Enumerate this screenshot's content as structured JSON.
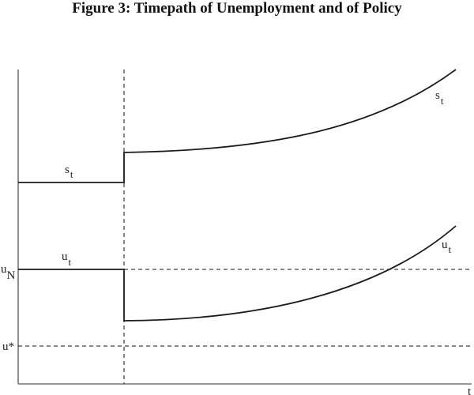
{
  "title": "Figure 3: Timepath of Unemployment and of Policy",
  "labels": {
    "s_left": {
      "main": "s",
      "sub": "t"
    },
    "u_left": {
      "main": "u",
      "sub": "t"
    },
    "s_right": {
      "main": "s",
      "sub": "t"
    },
    "u_right": {
      "main": "u",
      "sub": "t"
    },
    "u_natural": {
      "main": "u",
      "sub": "N"
    },
    "u_star": "u*",
    "x_axis": "t"
  },
  "colors": {
    "line": "#1a1a1a",
    "axis": "#666666"
  }
}
